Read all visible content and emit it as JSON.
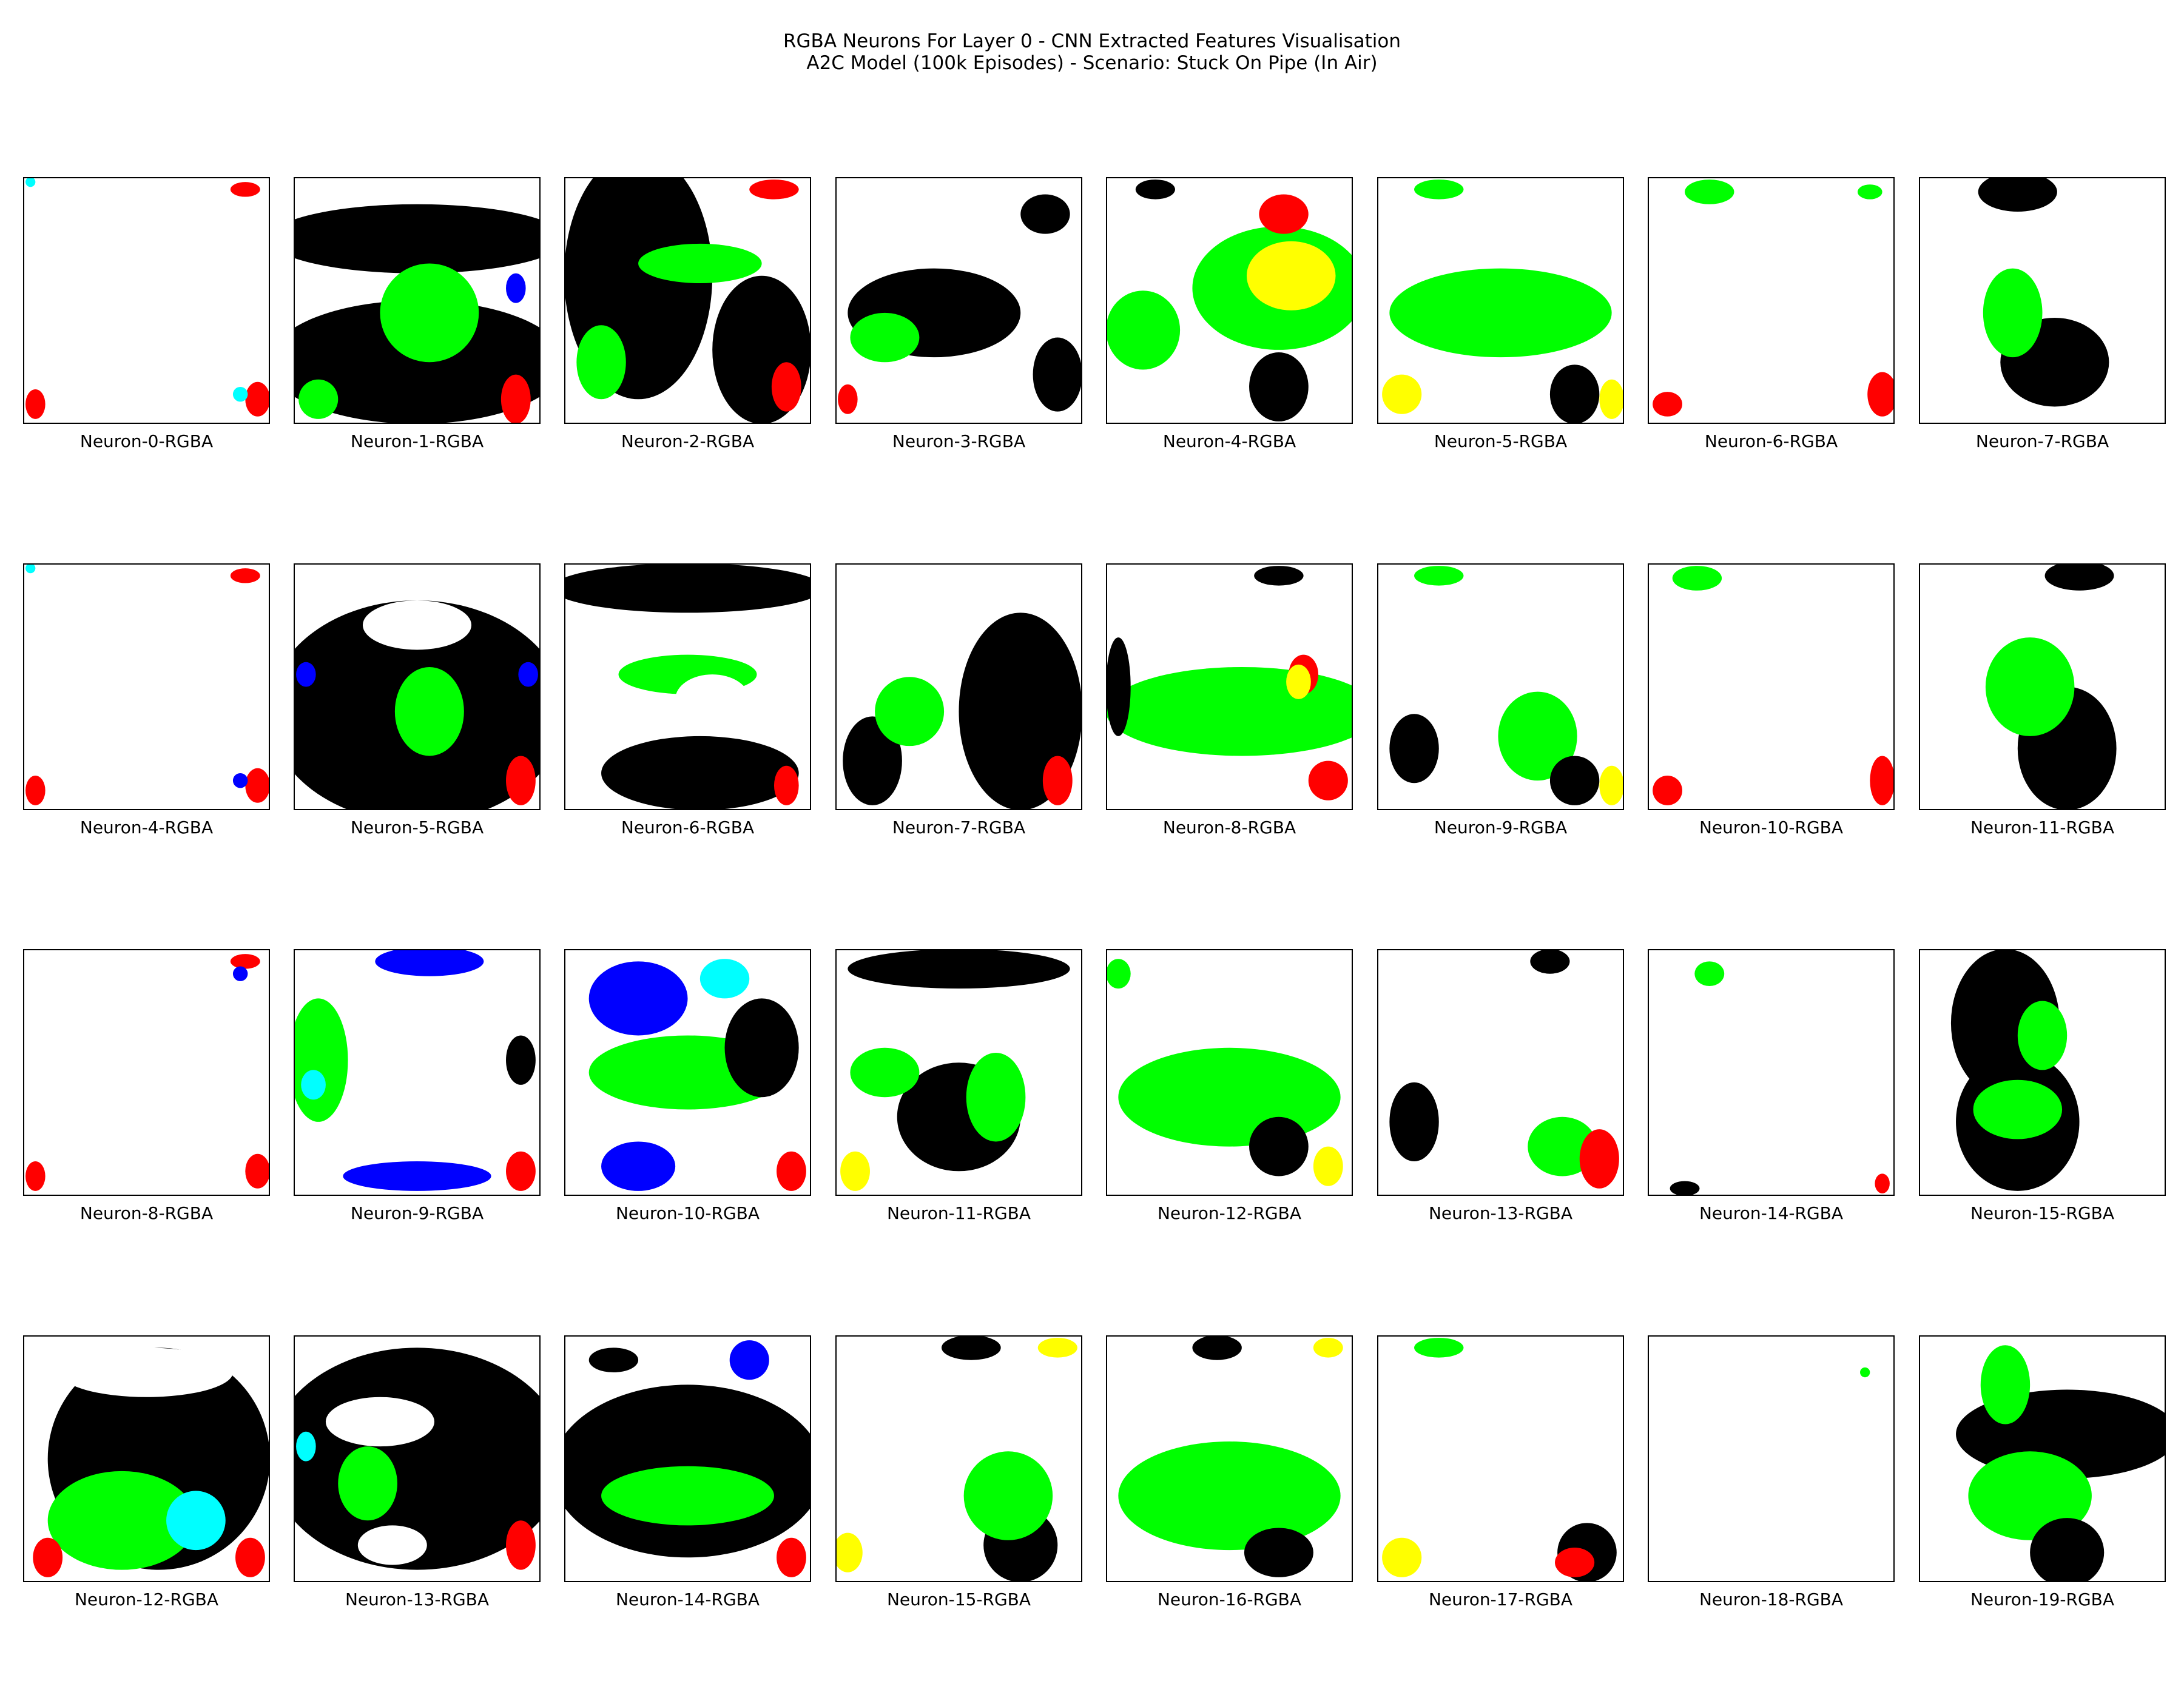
{
  "page": {
    "title": "RGBA Neurons For Layer 0 - CNN Extracted Features Visualisation",
    "subtitle": "A2C Model (100k Episodes) - Scenario: Stuck On Pipe (In Air)"
  },
  "chart_data": {
    "type": "image-grid",
    "rows": 4,
    "columns": 8,
    "panel_labels": [
      "Neuron-0-RGBA",
      "Neuron-1-RGBA",
      "Neuron-2-RGBA",
      "Neuron-3-RGBA",
      "Neuron-4-RGBA",
      "Neuron-5-RGBA",
      "Neuron-6-RGBA",
      "Neuron-7-RGBA",
      "Neuron-4-RGBA",
      "Neuron-5-RGBA",
      "Neuron-6-RGBA",
      "Neuron-7-RGBA",
      "Neuron-8-RGBA",
      "Neuron-9-RGBA",
      "Neuron-10-RGBA",
      "Neuron-11-RGBA",
      "Neuron-8-RGBA",
      "Neuron-9-RGBA",
      "Neuron-10-RGBA",
      "Neuron-11-RGBA",
      "Neuron-12-RGBA",
      "Neuron-13-RGBA",
      "Neuron-14-RGBA",
      "Neuron-15-RGBA",
      "Neuron-12-RGBA",
      "Neuron-13-RGBA",
      "Neuron-14-RGBA",
      "Neuron-15-RGBA",
      "Neuron-16-RGBA",
      "Neuron-17-RGBA",
      "Neuron-18-RGBA",
      "Neuron-19-RGBA"
    ],
    "axes_visible": false,
    "colors": {
      "background": "#ffffff",
      "black": "#000000",
      "green": "#00ff00",
      "red": "#ff0000",
      "yellow": "#ffff00",
      "blue": "#0000ff",
      "cyan": "#00ffff",
      "magenta": "#ff00ff"
    }
  }
}
